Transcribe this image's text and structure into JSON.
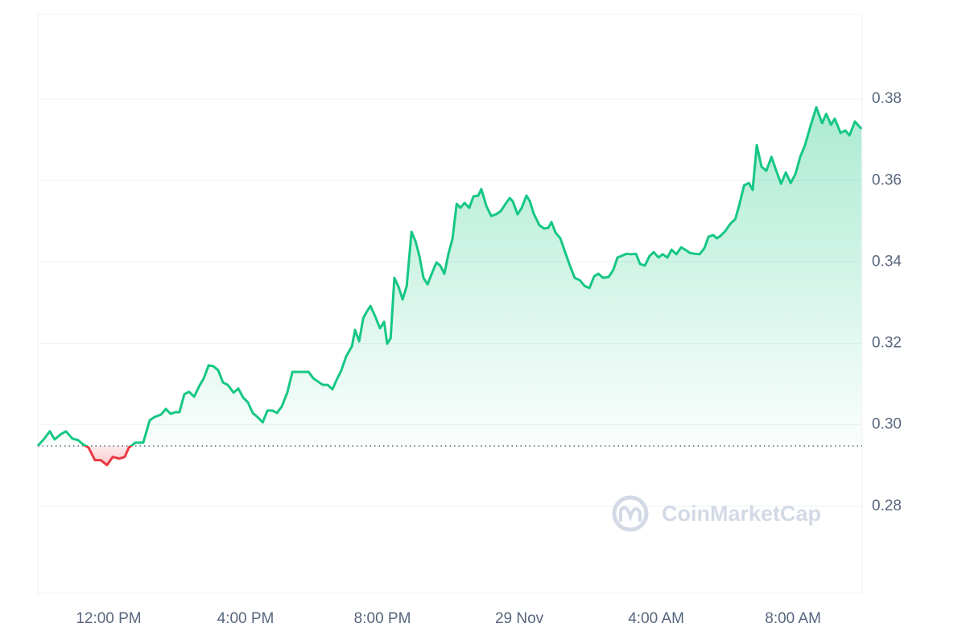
{
  "chart_data": {
    "type": "line",
    "watermark": "CoinMarketCap",
    "color": "#16c784",
    "down_color": "#ea3943",
    "grid": true,
    "baseline": 0.2948,
    "xlim": [
      9.93,
      34.02
    ],
    "ylim": [
      0.2586,
      0.4008
    ],
    "xticks": [
      {
        "value": 12,
        "label": "12:00 PM"
      },
      {
        "value": 16,
        "label": "4:00 PM"
      },
      {
        "value": 20,
        "label": "8:00 PM"
      },
      {
        "value": 24,
        "label": "29 Nov"
      },
      {
        "value": 28,
        "label": "4:00 AM"
      },
      {
        "value": 32,
        "label": "8:00 AM"
      }
    ],
    "yticks": [
      {
        "value": 0.28,
        "label": "0.28"
      },
      {
        "value": 0.3,
        "label": "0.30"
      },
      {
        "value": 0.32,
        "label": "0.32"
      },
      {
        "value": 0.34,
        "label": "0.34"
      },
      {
        "value": 0.36,
        "label": "0.36"
      },
      {
        "value": 0.38,
        "label": "0.38"
      }
    ],
    "x": [
      9.93,
      10.12,
      10.28,
      10.42,
      10.59,
      10.75,
      10.94,
      11.11,
      11.25,
      11.41,
      11.6,
      11.77,
      11.95,
      12.12,
      12.31,
      12.47,
      12.59,
      12.78,
      13.01,
      13.2,
      13.34,
      13.53,
      13.67,
      13.81,
      13.95,
      14.07,
      14.21,
      14.35,
      14.5,
      14.64,
      14.78,
      14.92,
      15.06,
      15.2,
      15.34,
      15.48,
      15.65,
      15.79,
      15.93,
      16.07,
      16.21,
      16.35,
      16.5,
      16.64,
      16.78,
      16.92,
      17.06,
      17.22,
      17.37,
      17.53,
      17.69,
      17.84,
      17.98,
      18.12,
      18.26,
      18.4,
      18.54,
      18.66,
      18.8,
      18.94,
      19.11,
      19.2,
      19.32,
      19.44,
      19.53,
      19.65,
      19.79,
      19.93,
      20.05,
      20.14,
      20.24,
      20.35,
      20.47,
      20.59,
      20.71,
      20.85,
      20.97,
      21.08,
      21.2,
      21.32,
      21.44,
      21.58,
      21.69,
      21.81,
      21.93,
      22.05,
      22.17,
      22.28,
      22.4,
      22.54,
      22.66,
      22.8,
      22.89,
      23.04,
      23.18,
      23.32,
      23.46,
      23.6,
      23.72,
      23.81,
      23.95,
      24.07,
      24.21,
      24.31,
      24.42,
      24.59,
      24.73,
      24.85,
      24.94,
      25.06,
      25.2,
      25.34,
      25.48,
      25.62,
      25.77,
      25.91,
      26.05,
      26.19,
      26.31,
      26.45,
      26.61,
      26.75,
      26.87,
      26.99,
      27.13,
      27.27,
      27.41,
      27.53,
      27.67,
      27.81,
      27.93,
      28.07,
      28.19,
      28.33,
      28.45,
      28.59,
      28.73,
      28.85,
      28.99,
      29.13,
      29.27,
      29.41,
      29.53,
      29.67,
      29.77,
      29.88,
      30.02,
      30.17,
      30.31,
      30.42,
      30.57,
      30.71,
      30.82,
      30.94,
      31.08,
      31.22,
      31.37,
      31.51,
      31.65,
      31.79,
      31.93,
      32.07,
      32.21,
      32.35,
      32.5,
      32.68,
      32.85,
      32.97,
      33.11,
      33.22,
      33.39,
      33.53,
      33.65,
      33.81,
      34.0
    ],
    "values": [
      0.2948,
      0.2966,
      0.2984,
      0.2964,
      0.2976,
      0.2984,
      0.2966,
      0.2962,
      0.2952,
      0.2944,
      0.2913,
      0.2913,
      0.2901,
      0.2921,
      0.2917,
      0.2921,
      0.2944,
      0.2956,
      0.2956,
      0.3011,
      0.3019,
      0.3025,
      0.3039,
      0.3027,
      0.3031,
      0.3031,
      0.3075,
      0.3081,
      0.3069,
      0.3094,
      0.3114,
      0.3146,
      0.3144,
      0.3134,
      0.3104,
      0.3098,
      0.3079,
      0.3089,
      0.3067,
      0.3055,
      0.3029,
      0.3019,
      0.3006,
      0.3035,
      0.3035,
      0.3029,
      0.3045,
      0.3079,
      0.313,
      0.313,
      0.313,
      0.313,
      0.3114,
      0.3106,
      0.3098,
      0.3098,
      0.3087,
      0.311,
      0.3134,
      0.3168,
      0.3193,
      0.3233,
      0.3205,
      0.3262,
      0.3276,
      0.3292,
      0.3266,
      0.3237,
      0.3253,
      0.3199,
      0.3213,
      0.3361,
      0.3339,
      0.3308,
      0.3341,
      0.3474,
      0.345,
      0.3415,
      0.3361,
      0.3345,
      0.3371,
      0.3399,
      0.3391,
      0.3371,
      0.342,
      0.3458,
      0.3543,
      0.3533,
      0.3545,
      0.3533,
      0.3561,
      0.3563,
      0.3579,
      0.3537,
      0.3513,
      0.3517,
      0.3525,
      0.3543,
      0.3557,
      0.3549,
      0.3517,
      0.3533,
      0.3563,
      0.3549,
      0.3519,
      0.349,
      0.3482,
      0.3484,
      0.3498,
      0.3472,
      0.3458,
      0.3424,
      0.3391,
      0.3361,
      0.3355,
      0.3341,
      0.3336,
      0.3365,
      0.3371,
      0.3361,
      0.3363,
      0.3381,
      0.3411,
      0.3415,
      0.342,
      0.3419,
      0.342,
      0.3395,
      0.3391,
      0.3415,
      0.3424,
      0.3411,
      0.3419,
      0.3411,
      0.343,
      0.3419,
      0.3436,
      0.343,
      0.3422,
      0.342,
      0.3419,
      0.3434,
      0.3462,
      0.3466,
      0.3458,
      0.3464,
      0.3476,
      0.3494,
      0.3505,
      0.3537,
      0.3588,
      0.3594,
      0.3577,
      0.3687,
      0.3634,
      0.3624,
      0.3658,
      0.3624,
      0.3592,
      0.362,
      0.3594,
      0.3616,
      0.3658,
      0.3687,
      0.3731,
      0.378,
      0.3741,
      0.3764,
      0.3737,
      0.3752,
      0.3717,
      0.3723,
      0.3711,
      0.3745,
      0.3727
    ]
  }
}
